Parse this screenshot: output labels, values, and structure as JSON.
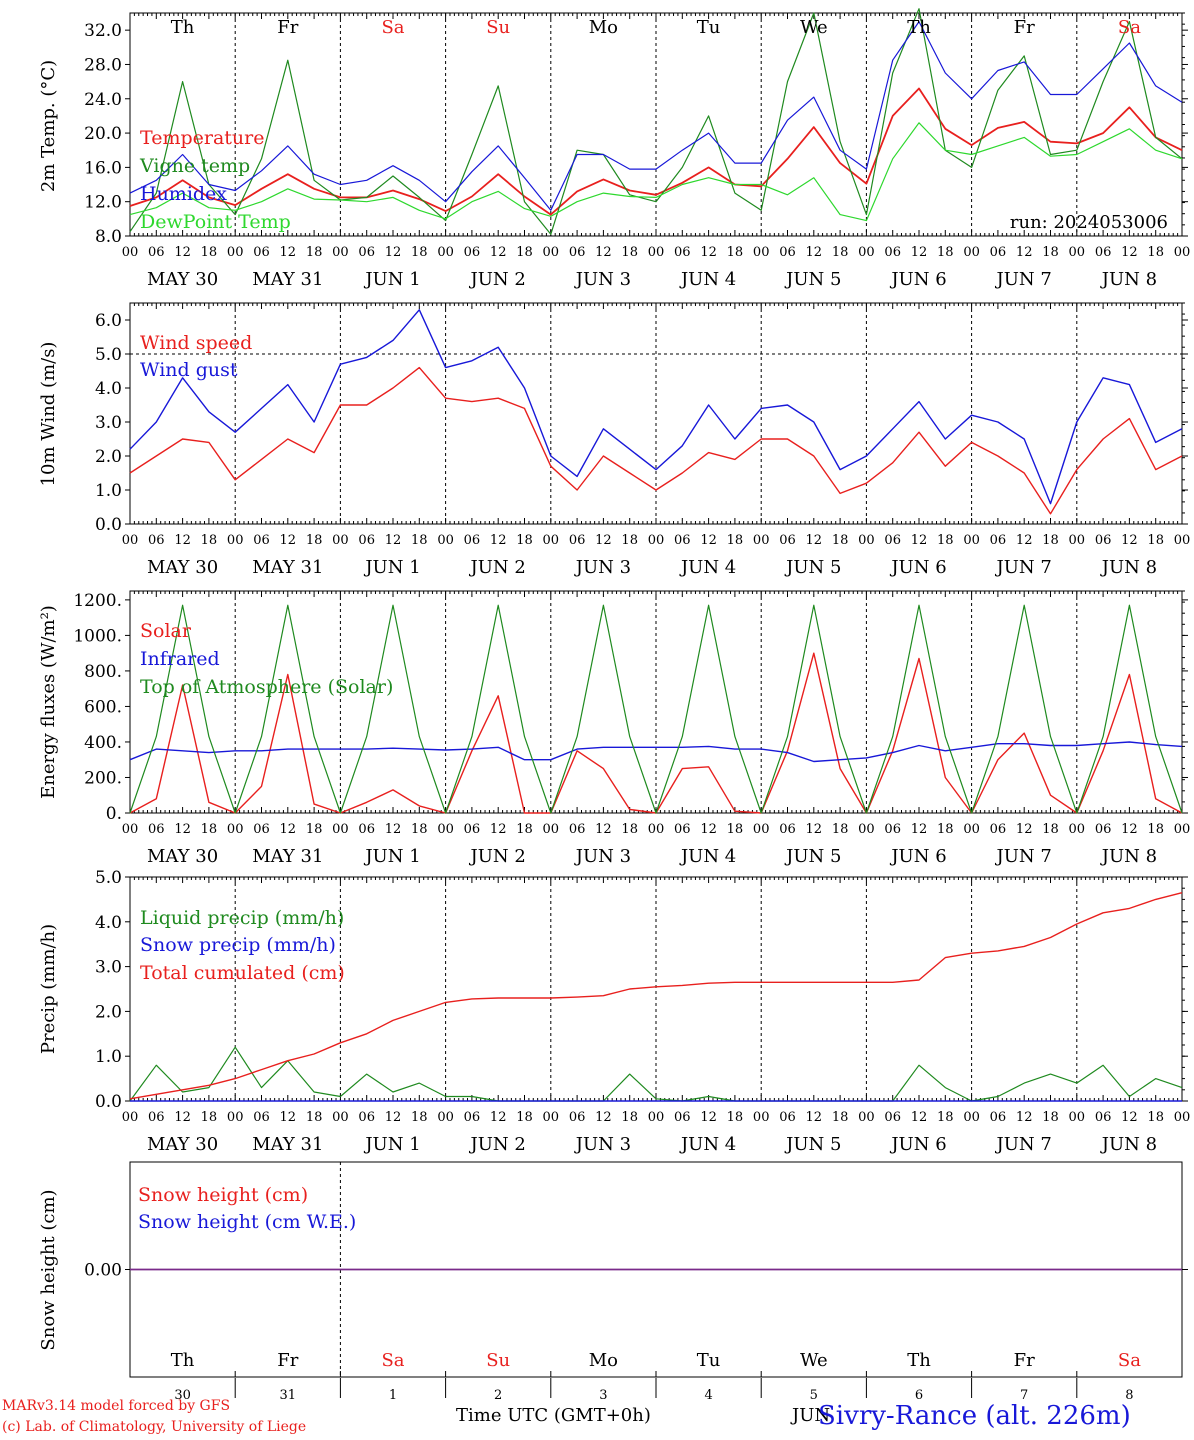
{
  "footer": {
    "credit1": "MARv3.14 model forced by GFS",
    "credit2": "(c) Lab. of Climatology, University of Liege",
    "xlabel": "Time UTC (GMT+0h)",
    "station": "Sivry-Rance (alt. 226m)",
    "overlap_text": "JUN"
  },
  "colors": {
    "red": "#e8201e",
    "green": "#1f8a1f",
    "blue": "#1818d8",
    "lightgreen": "#2ed82e",
    "purple": "#7a2a8a",
    "weekend": "#e8201e",
    "axis": "#000000"
  },
  "days": {
    "names": [
      "Th",
      "Fr",
      "Sa",
      "Su",
      "Mo",
      "Tu",
      "We",
      "Th",
      "Fr",
      "Sa"
    ],
    "weekend": [
      false,
      false,
      true,
      true,
      false,
      false,
      false,
      false,
      false,
      true
    ],
    "dates": [
      "MAY 30",
      "MAY 31",
      "JUN  1",
      "JUN  2",
      "JUN  3",
      "JUN  4",
      "JUN  5",
      "JUN  6",
      "JUN  7",
      "JUN  8"
    ],
    "daynums": [
      "30",
      "31",
      "1",
      "2",
      "3",
      "4",
      "5",
      "6",
      "7",
      "8"
    ],
    "hour_ticks": [
      "00",
      "06",
      "12",
      "18"
    ],
    "final_hour": "00"
  },
  "chart_data": [
    {
      "type": "line",
      "ylabel": "2m Temp. (°C)",
      "ylim": [
        8,
        34
      ],
      "yticks": [
        "8.0",
        "12.0",
        "16.0",
        "20.0",
        "24.0",
        "28.0",
        "32.0"
      ],
      "annotation": "run: 2024053006",
      "x_unit": "hours since MAY 30 00 UTC",
      "x": [
        0,
        6,
        12,
        18,
        24,
        30,
        36,
        42,
        48,
        54,
        60,
        66,
        72,
        78,
        84,
        90,
        96,
        102,
        108,
        114,
        120,
        126,
        132,
        138,
        144,
        150,
        156,
        162,
        168,
        174,
        180,
        186,
        192,
        198,
        204,
        210,
        216,
        222,
        228,
        234,
        240
      ],
      "series": [
        {
          "name": "Temperature",
          "color": "red",
          "values": [
            11.5,
            12.5,
            14.5,
            12.5,
            11.6,
            13.5,
            15.2,
            13.5,
            12.5,
            12.5,
            13.3,
            12.3,
            10.9,
            12.6,
            15.2,
            12.6,
            10.5,
            13.2,
            14.6,
            13.3,
            12.8,
            14.2,
            16.0,
            14.0,
            13.8,
            17.0,
            20.7,
            16.5,
            14.1,
            22.0,
            25.2,
            20.5,
            18.6,
            20.6,
            21.3,
            19.0,
            18.8,
            20.0,
            23.0,
            19.5,
            18.0
          ]
        },
        {
          "name": "Vigne temp",
          "color": "green",
          "values": [
            8.5,
            13.0,
            26.0,
            14.0,
            10.5,
            17.0,
            28.5,
            14.5,
            12.2,
            12.5,
            15.0,
            12.5,
            9.8,
            17.5,
            25.5,
            12.0,
            8.2,
            18.0,
            17.5,
            12.8,
            12.0,
            16.0,
            22.0,
            13.0,
            11.0,
            26.0,
            34.0,
            19.0,
            10.5,
            27.0,
            34.5,
            18.0,
            16.0,
            25.0,
            29.0,
            17.5,
            18.0,
            26.0,
            33.0,
            19.5,
            17.0
          ]
        },
        {
          "name": "Humidex",
          "color": "blue",
          "values": [
            13.0,
            14.5,
            17.5,
            14.0,
            13.3,
            15.6,
            18.5,
            15.2,
            14.0,
            14.5,
            16.2,
            14.5,
            12.0,
            15.5,
            18.5,
            14.8,
            11.0,
            17.5,
            17.5,
            15.8,
            15.8,
            18.0,
            20.0,
            16.5,
            16.5,
            21.5,
            24.2,
            18.0,
            15.8,
            28.5,
            33.0,
            27.0,
            24.0,
            27.3,
            28.3,
            24.5,
            24.5,
            27.5,
            30.5,
            25.5,
            23.6
          ]
        },
        {
          "name": "DewPoint Temp",
          "color": "lightgreen",
          "values": [
            10.5,
            11.3,
            13.0,
            11.3,
            11.0,
            12.0,
            13.5,
            12.3,
            12.2,
            12.0,
            12.5,
            11.0,
            10.0,
            12.0,
            13.2,
            11.2,
            10.3,
            12.0,
            13.0,
            12.6,
            12.5,
            14.0,
            14.8,
            14.0,
            14.0,
            12.8,
            14.8,
            10.5,
            9.8,
            17.0,
            21.2,
            18.0,
            17.5,
            18.5,
            19.5,
            17.3,
            17.5,
            19.0,
            20.5,
            18.0,
            17.0
          ]
        }
      ]
    },
    {
      "type": "line",
      "ylabel": "10m Wind (m/s)",
      "ylim": [
        0,
        6.5
      ],
      "yticks": [
        "0.0",
        "1.0",
        "2.0",
        "3.0",
        "4.0",
        "5.0",
        "6.0"
      ],
      "reference_line": 5.0,
      "x_unit": "hours since MAY 30 00 UTC",
      "x": [
        0,
        6,
        12,
        18,
        24,
        30,
        36,
        42,
        48,
        54,
        60,
        66,
        72,
        78,
        84,
        90,
        96,
        102,
        108,
        114,
        120,
        126,
        132,
        138,
        144,
        150,
        156,
        162,
        168,
        174,
        180,
        186,
        192,
        198,
        204,
        210,
        216,
        222,
        228,
        234,
        240
      ],
      "series": [
        {
          "name": "Wind speed",
          "color": "red",
          "values": [
            1.5,
            2.0,
            2.5,
            2.4,
            1.3,
            1.9,
            2.5,
            2.1,
            3.5,
            3.5,
            4.0,
            4.6,
            3.7,
            3.6,
            3.7,
            3.4,
            1.7,
            1.0,
            2.0,
            1.5,
            1.0,
            1.5,
            2.1,
            1.9,
            2.5,
            2.5,
            2.0,
            0.9,
            1.2,
            1.8,
            2.7,
            1.7,
            2.4,
            2.0,
            1.5,
            0.3,
            1.6,
            2.5,
            3.1,
            1.6,
            2.0
          ]
        },
        {
          "name": "Wind gust",
          "color": "blue",
          "values": [
            2.2,
            3.0,
            4.3,
            3.3,
            2.7,
            3.4,
            4.1,
            3.0,
            4.7,
            4.9,
            5.4,
            6.3,
            4.6,
            4.8,
            5.2,
            4.0,
            2.0,
            1.4,
            2.8,
            2.2,
            1.6,
            2.3,
            3.5,
            2.5,
            3.4,
            3.5,
            3.0,
            1.6,
            2.0,
            2.8,
            3.6,
            2.5,
            3.2,
            3.0,
            2.5,
            0.6,
            3.0,
            4.3,
            4.1,
            2.4,
            2.8
          ]
        }
      ]
    },
    {
      "type": "line",
      "ylabel": "Energy fluxes (W/m²)",
      "ylim": [
        0,
        1250
      ],
      "yticks": [
        "0.",
        "200.",
        "400.",
        "600.",
        "800.",
        "1000.",
        "1200."
      ],
      "x_unit": "hours since MAY 30 00 UTC",
      "x": [
        0,
        6,
        12,
        18,
        24,
        30,
        36,
        42,
        48,
        54,
        60,
        66,
        72,
        78,
        84,
        90,
        96,
        102,
        108,
        114,
        120,
        126,
        132,
        138,
        144,
        150,
        156,
        162,
        168,
        174,
        180,
        186,
        192,
        198,
        204,
        210,
        216,
        222,
        228,
        234,
        240
      ],
      "series": [
        {
          "name": "Solar",
          "color": "red",
          "values": [
            0,
            80,
            720,
            60,
            0,
            150,
            780,
            50,
            0,
            60,
            130,
            40,
            0,
            350,
            660,
            0,
            0,
            350,
            250,
            20,
            0,
            250,
            260,
            10,
            0,
            350,
            900,
            250,
            0,
            350,
            870,
            200,
            0,
            300,
            450,
            100,
            0,
            350,
            780,
            80,
            0
          ]
        },
        {
          "name": "Infrared",
          "color": "blue",
          "values": [
            300,
            360,
            350,
            340,
            350,
            350,
            360,
            360,
            360,
            360,
            365,
            360,
            355,
            360,
            370,
            300,
            300,
            360,
            370,
            370,
            370,
            370,
            375,
            360,
            360,
            340,
            290,
            300,
            310,
            340,
            380,
            350,
            370,
            390,
            390,
            380,
            380,
            390,
            400,
            385,
            375
          ]
        },
        {
          "name": "Top of Atmosphere (Solar)",
          "color": "green",
          "values": [
            0,
            430,
            1170,
            430,
            0,
            430,
            1170,
            430,
            0,
            430,
            1170,
            430,
            0,
            430,
            1170,
            430,
            0,
            430,
            1170,
            430,
            0,
            430,
            1170,
            430,
            0,
            430,
            1170,
            430,
            0,
            430,
            1170,
            430,
            0,
            430,
            1170,
            430,
            0,
            430,
            1170,
            430,
            0
          ]
        }
      ]
    },
    {
      "type": "line",
      "ylabel": "Precip (mm/h)",
      "ylim": [
        0,
        5.0
      ],
      "yticks": [
        "0.0",
        "1.0",
        "2.0",
        "3.0",
        "4.0",
        "5.0"
      ],
      "x_unit": "hours since MAY 30 00 UTC",
      "x": [
        0,
        6,
        12,
        18,
        24,
        30,
        36,
        42,
        48,
        54,
        60,
        66,
        72,
        78,
        84,
        90,
        96,
        102,
        108,
        114,
        120,
        126,
        132,
        138,
        144,
        150,
        156,
        162,
        168,
        174,
        180,
        186,
        192,
        198,
        204,
        210,
        216,
        222,
        228,
        234,
        240
      ],
      "series": [
        {
          "name": "Liquid precip (mm/h)",
          "color": "green",
          "values": [
            0.0,
            0.8,
            0.2,
            0.3,
            1.2,
            0.3,
            0.9,
            0.2,
            0.1,
            0.6,
            0.2,
            0.4,
            0.1,
            0.1,
            0.0,
            0.0,
            0.0,
            0.0,
            0.0,
            0.6,
            0.05,
            0.0,
            0.1,
            0.0,
            0.0,
            0.0,
            0.0,
            0.0,
            0.0,
            0.0,
            0.8,
            0.3,
            0.0,
            0.1,
            0.4,
            0.6,
            0.4,
            0.8,
            0.1,
            0.5,
            0.3
          ]
        },
        {
          "name": "Snow precip (mm/h)",
          "color": "blue",
          "values": [
            0,
            0,
            0,
            0,
            0,
            0,
            0,
            0,
            0,
            0,
            0,
            0,
            0,
            0,
            0,
            0,
            0,
            0,
            0,
            0,
            0,
            0,
            0,
            0,
            0,
            0,
            0,
            0,
            0,
            0,
            0,
            0,
            0,
            0,
            0,
            0,
            0,
            0,
            0,
            0,
            0
          ]
        },
        {
          "name": "Total cumulated (cm)",
          "color": "red",
          "values": [
            0.05,
            0.15,
            0.25,
            0.35,
            0.5,
            0.7,
            0.9,
            1.05,
            1.3,
            1.5,
            1.8,
            2.0,
            2.2,
            2.28,
            2.3,
            2.3,
            2.3,
            2.32,
            2.35,
            2.5,
            2.55,
            2.58,
            2.63,
            2.65,
            2.65,
            2.65,
            2.65,
            2.65,
            2.65,
            2.65,
            2.7,
            3.2,
            3.3,
            3.35,
            3.45,
            3.65,
            3.95,
            4.2,
            4.3,
            4.5,
            4.65
          ]
        }
      ]
    },
    {
      "type": "line",
      "ylabel": "Snow height (cm)",
      "ylim": [
        -1,
        1
      ],
      "yticks": [
        "0.00"
      ],
      "x_unit": "hours since MAY 30 00 UTC",
      "x": [
        0,
        240
      ],
      "series": [
        {
          "name": "Snow height (cm)",
          "color": "red",
          "values": [
            0,
            0
          ]
        },
        {
          "name": "Snow height (cm W.E.)",
          "color": "blue",
          "values": [
            0,
            0
          ]
        }
      ]
    }
  ]
}
